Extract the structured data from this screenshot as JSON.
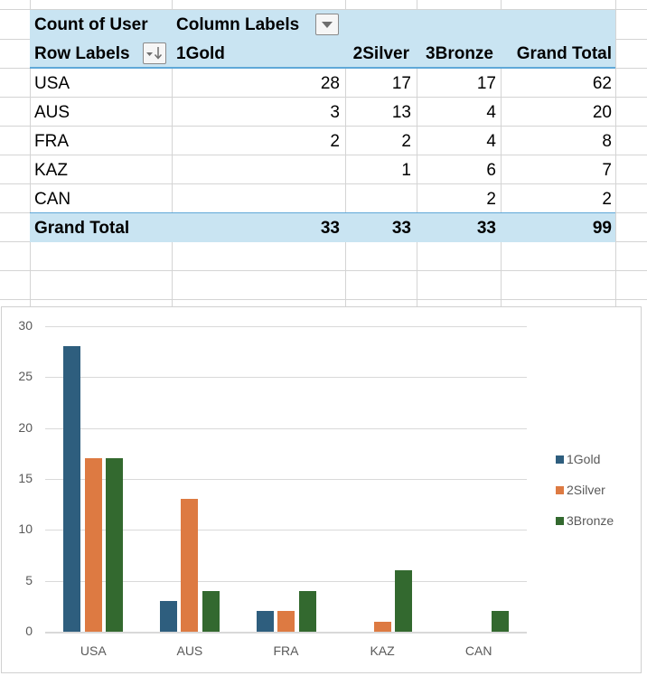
{
  "pivot": {
    "value_field": "Count of User",
    "column_labels": "Column Labels",
    "row_labels": "Row Labels",
    "columns": [
      "1Gold",
      "2Silver",
      "3Bronze",
      "Grand Total"
    ],
    "rows": [
      {
        "label": "USA",
        "values": [
          "28",
          "17",
          "17",
          "62"
        ]
      },
      {
        "label": "AUS",
        "values": [
          "3",
          "13",
          "4",
          "20"
        ]
      },
      {
        "label": "FRA",
        "values": [
          "2",
          "2",
          "4",
          "8"
        ]
      },
      {
        "label": "KAZ",
        "values": [
          "",
          "1",
          "6",
          "7"
        ]
      },
      {
        "label": "CAN",
        "values": [
          "",
          "",
          "2",
          "2"
        ]
      }
    ],
    "grand_total": {
      "label": "Grand Total",
      "values": [
        "33",
        "33",
        "33",
        "99"
      ]
    }
  },
  "colors": {
    "gold": "#2e5e7e",
    "silver": "#dd7a42",
    "bronze": "#33692f",
    "header_bg": "#c9e4f2",
    "header_line": "#5fa8d8"
  },
  "chart_data": {
    "type": "bar",
    "title": "",
    "xlabel": "",
    "ylabel": "",
    "categories": [
      "USA",
      "AUS",
      "FRA",
      "KAZ",
      "CAN"
    ],
    "series": [
      {
        "name": "1Gold",
        "values": [
          28,
          3,
          2,
          0,
          0
        ]
      },
      {
        "name": "2Silver",
        "values": [
          17,
          13,
          2,
          1,
          0
        ]
      },
      {
        "name": "3Bronze",
        "values": [
          17,
          4,
          4,
          6,
          2
        ]
      }
    ],
    "yticks": [
      "0",
      "5",
      "10",
      "15",
      "20",
      "25",
      "30"
    ],
    "ylim": [
      0,
      30
    ],
    "grid": true,
    "legend_position": "right"
  }
}
